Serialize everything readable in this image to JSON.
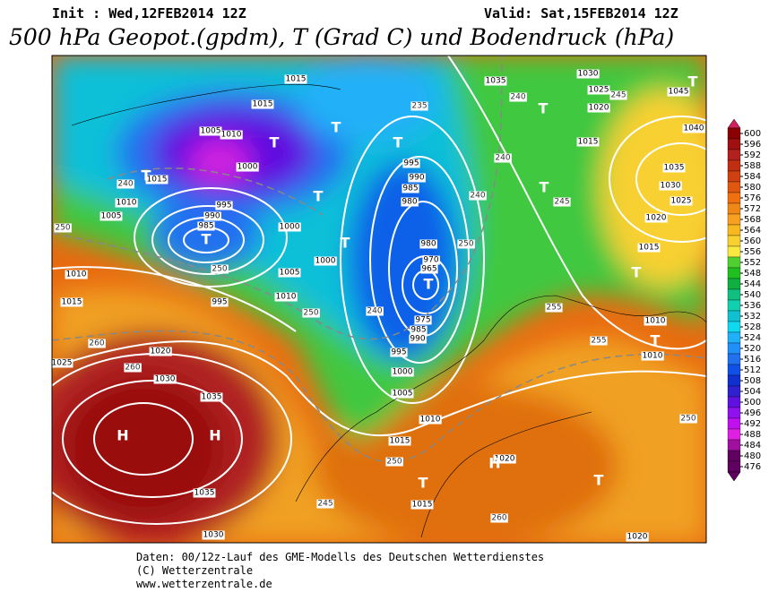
{
  "header": {
    "init": "Init : Wed,12FEB2014 12Z",
    "valid": "Valid: Sat,15FEB2014 12Z",
    "title": "500 hPa Geopot.(gpdm), T (Grad C) und Bodendruck (hPa)"
  },
  "footer": [
    "Daten: 00/12z-Lauf des GME-Modells des Deutschen Wetterdienstes",
    "(C) Wetterzentrale",
    "www.wetterzentrale.de"
  ],
  "colorbar": {
    "ticks": [
      600,
      596,
      592,
      588,
      584,
      580,
      576,
      572,
      568,
      564,
      560,
      556,
      552,
      548,
      544,
      540,
      536,
      532,
      528,
      524,
      520,
      516,
      512,
      508,
      504,
      500,
      496,
      492,
      488,
      484,
      480,
      476
    ],
    "colors": [
      "#d02060",
      "#8b0000",
      "#a01010",
      "#b22020",
      "#c03010",
      "#d04010",
      "#e05810",
      "#f07010",
      "#f08818",
      "#f8a020",
      "#f8b820",
      "#f8d030",
      "#f8e840",
      "#50d030",
      "#20c020",
      "#10b040",
      "#10c080",
      "#10d0b0",
      "#10c0d0",
      "#10d8f0",
      "#20b0f8",
      "#2090f8",
      "#2070f0",
      "#1050e8",
      "#1030d0",
      "#3020d0",
      "#6010e0",
      "#9010f0",
      "#c010f0",
      "#e020e0",
      "#a010a0",
      "#600060"
    ]
  },
  "map": {
    "pressure_labels": [
      "1015",
      "1015",
      "1010",
      "1005",
      "1000",
      "995",
      "990",
      "985",
      "1005",
      "1010",
      "1015",
      "1010",
      "1015",
      "995",
      "1005",
      "1010",
      "1000",
      "1000",
      "995",
      "990",
      "985",
      "980",
      "980",
      "970",
      "965",
      "975",
      "985",
      "990",
      "995",
      "1000",
      "1005",
      "1010",
      "1015",
      "1020",
      "1025",
      "1030",
      "1035",
      "1035",
      "1030",
      "1035",
      "1030",
      "1025",
      "1020",
      "1015",
      "1035",
      "1030",
      "1025",
      "1020",
      "1015",
      "1010",
      "1010",
      "1020",
      "1015",
      "1020",
      "1040",
      "1045"
    ],
    "temperature_labels": [
      "240",
      "250",
      "250",
      "260",
      "260",
      "250",
      "240",
      "240",
      "250",
      "255",
      "255",
      "250",
      "250",
      "260",
      "245",
      "240",
      "235",
      "245",
      "240",
      "245"
    ],
    "markers": [
      "H",
      "H",
      "H",
      "T",
      "T",
      "T",
      "T",
      "T",
      "T",
      "T",
      "T",
      "T",
      "T",
      "T",
      "T",
      "T",
      "T",
      "T"
    ]
  }
}
